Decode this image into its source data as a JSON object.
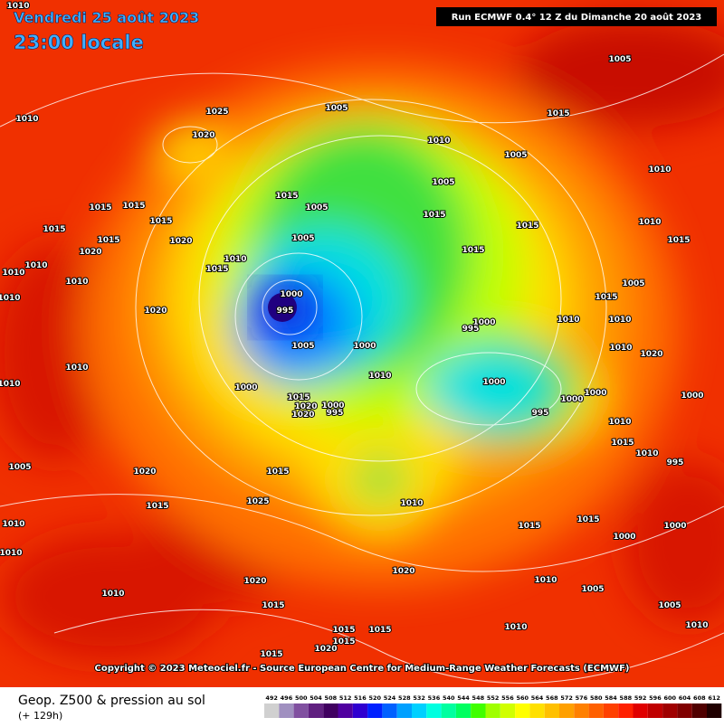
{
  "header": {
    "date": "Vendredi 25 août 2023",
    "time": "23:00 locale",
    "run": "Run ECMWF 0.4° 12 Z du Dimanche 20 août 2023"
  },
  "copyright": "Copyright © 2023 Meteociel.fr - Source European Centre for Medium-Range Weather Forecasts (ECMWF)",
  "footer": {
    "title": "Geop. Z500 & pression au sol",
    "lead": "(+ 129h)"
  },
  "scale": {
    "values": [
      492,
      496,
      500,
      504,
      508,
      512,
      516,
      520,
      524,
      528,
      532,
      536,
      540,
      544,
      548,
      552,
      556,
      560,
      564,
      568,
      572,
      576,
      580,
      584,
      588,
      592,
      596,
      600,
      604,
      608,
      612
    ],
    "colors": [
      "#d0d0d0",
      "#a090c0",
      "#8050a0",
      "#602080",
      "#400060",
      "#5000a0",
      "#3000d0",
      "#0020ff",
      "#0060ff",
      "#00a0ff",
      "#00d0ff",
      "#00ffe0",
      "#00ffa0",
      "#00ff60",
      "#40ff00",
      "#a0ff00",
      "#d0ff00",
      "#ffff00",
      "#ffe000",
      "#ffc000",
      "#ffa000",
      "#ff8000",
      "#ff6000",
      "#ff4000",
      "#ff2000",
      "#e00000",
      "#c00000",
      "#a00000",
      "#800000",
      "#500000",
      "#200000"
    ]
  },
  "isobar_labels": [
    1010,
    1025,
    1020,
    1005,
    1010,
    1005,
    1015,
    1005,
    1005,
    1015,
    1015,
    1005,
    1005,
    1015,
    1015,
    1010,
    1010,
    1015,
    1010,
    1015,
    1015,
    1015,
    1020,
    1015,
    1015,
    1015,
    1020,
    1010,
    1010,
    1010,
    1010,
    1020,
    1000,
    995,
    1005,
    995,
    1000,
    1000,
    1010,
    1015,
    1005,
    1000,
    1015,
    1020,
    1000,
    1020,
    995,
    1010,
    1000,
    995,
    1000,
    1000,
    1010,
    1010,
    1020,
    1000,
    1010,
    1015,
    1010,
    995,
    1020,
    1015,
    1025,
    1015,
    1010,
    1015,
    1015,
    1000,
    1000,
    1010,
    1010,
    1020,
    1020,
    1010,
    1005,
    1005,
    1015,
    1010,
    1010,
    1015,
    1015,
    1020,
    1015,
    1010,
    1005,
    1010,
    1010,
    1015,
    1010
  ]
}
